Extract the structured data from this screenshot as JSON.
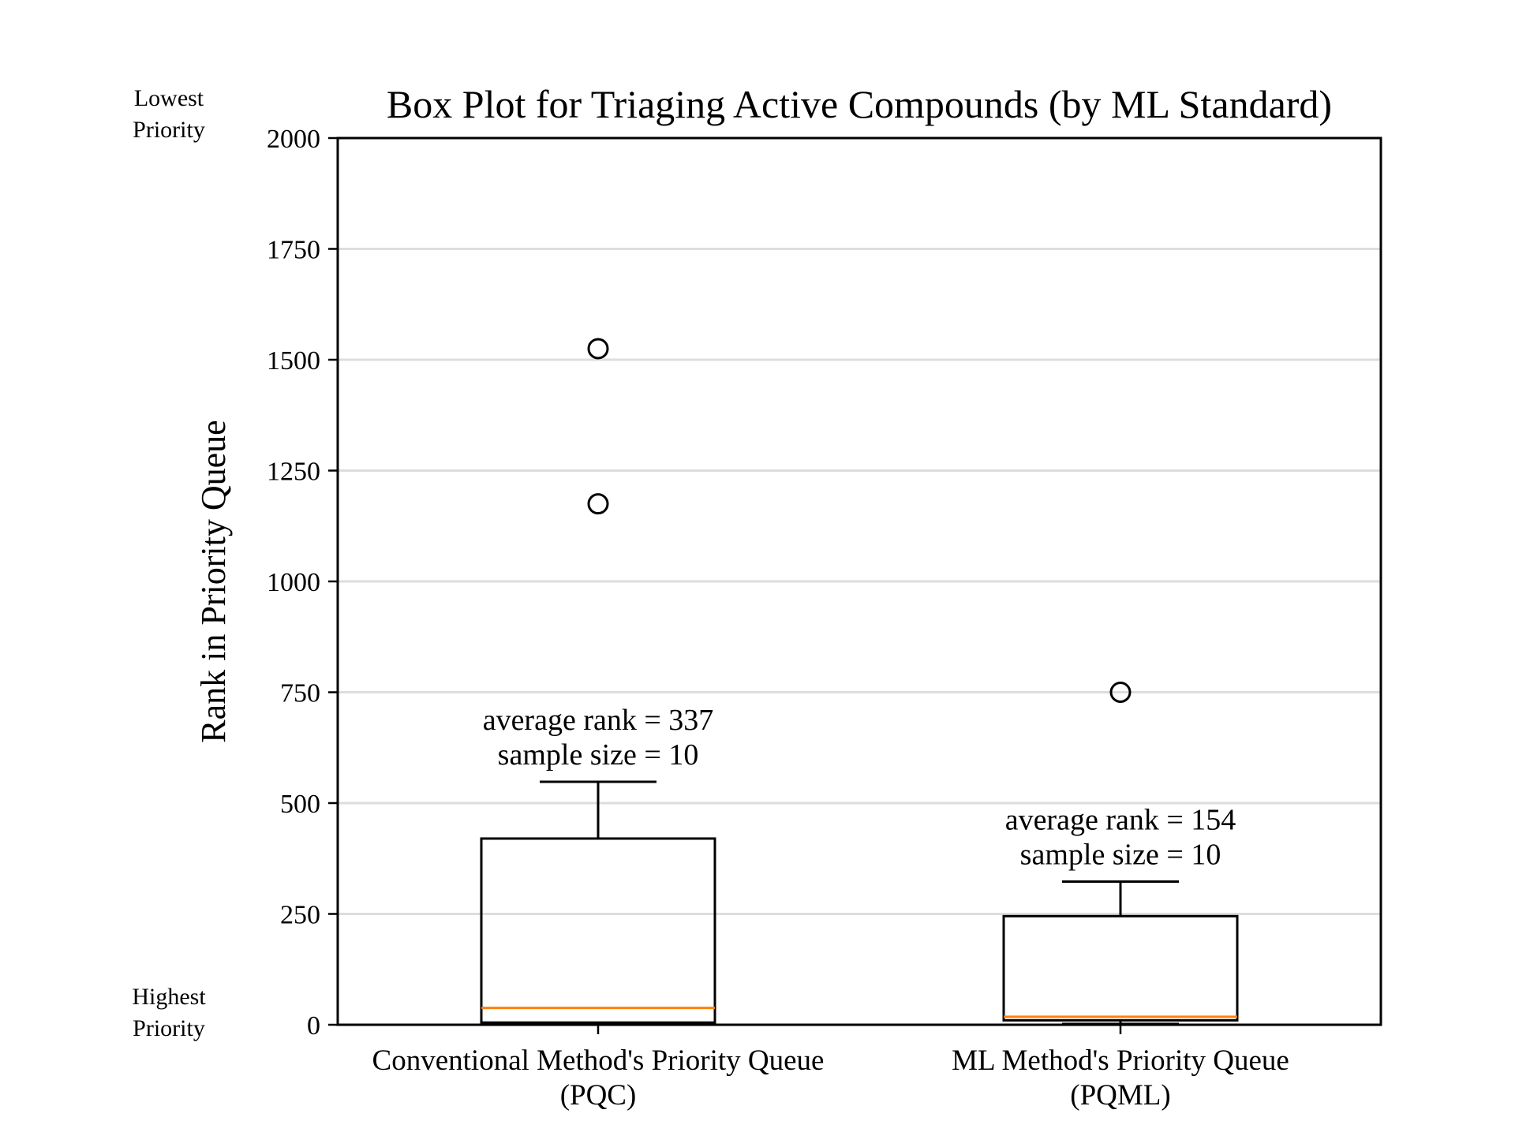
{
  "chart_data": {
    "type": "box",
    "title": "Box Plot for Triaging Active Compounds (by ML Standard)",
    "xlabel": "",
    "ylabel": "Rank in Priority Queue",
    "ylim": [
      0,
      2000
    ],
    "yticks": [
      0,
      250,
      500,
      750,
      1000,
      1250,
      1500,
      1750,
      2000
    ],
    "grid": "horizontal",
    "top_note": [
      "Lowest",
      "Priority"
    ],
    "bottom_note": [
      "Highest",
      "Priority"
    ],
    "colors": {
      "box": "#000000",
      "median": "#ff7f0e",
      "grid": "#dddddd"
    },
    "boxes": [
      {
        "category": [
          "Conventional Method's Priority Queue",
          "(PQC)"
        ],
        "whisker_low": 2,
        "q1": 5,
        "median": 38,
        "q3": 420,
        "whisker_high": 548,
        "outliers": [
          1175,
          1525
        ],
        "annotation": [
          "average rank = 337",
          "sample size = 10"
        ]
      },
      {
        "category": [
          "ML Method's Priority Queue",
          "(PQML)"
        ],
        "whisker_low": 2,
        "q1": 10,
        "median": 18,
        "q3": 245,
        "whisker_high": 323,
        "outliers": [
          750
        ],
        "annotation": [
          "average rank = 154",
          "sample size = 10"
        ]
      }
    ]
  }
}
